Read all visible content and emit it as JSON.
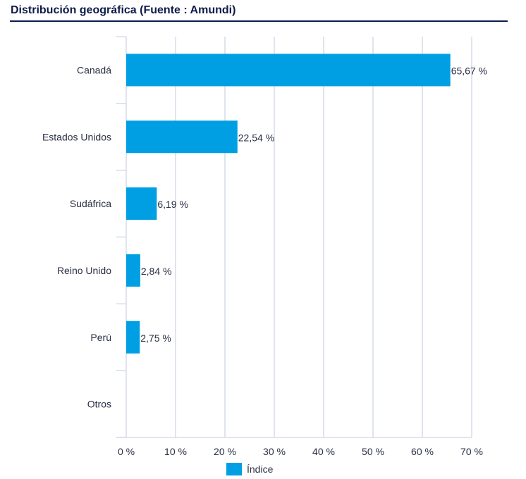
{
  "chart_data": {
    "type": "bar",
    "orientation": "horizontal",
    "title": "Distribución geográfica (Fuente : Amundi)",
    "categories": [
      "Canadá",
      "Estados Unidos",
      "Sudáfrica",
      "Reino Unido",
      "Perú",
      "Otros"
    ],
    "series": [
      {
        "name": "Índice",
        "values": [
          65.67,
          22.54,
          6.19,
          2.84,
          2.75,
          null
        ]
      }
    ],
    "data_labels": [
      "65,67 %",
      "22,54 %",
      "6,19 %",
      "2,84 %",
      "2,75 %",
      ""
    ],
    "xlim": [
      0,
      70
    ],
    "xticks": [
      "0 %",
      "10 %",
      "20 %",
      "30 %",
      "40 %",
      "50 %",
      "60 %",
      "70 %"
    ],
    "grid": true,
    "legend": "bottom",
    "colors": {
      "bar": "#009fe3",
      "grid": "#d5dce8",
      "title": "#0d1b4a"
    }
  }
}
